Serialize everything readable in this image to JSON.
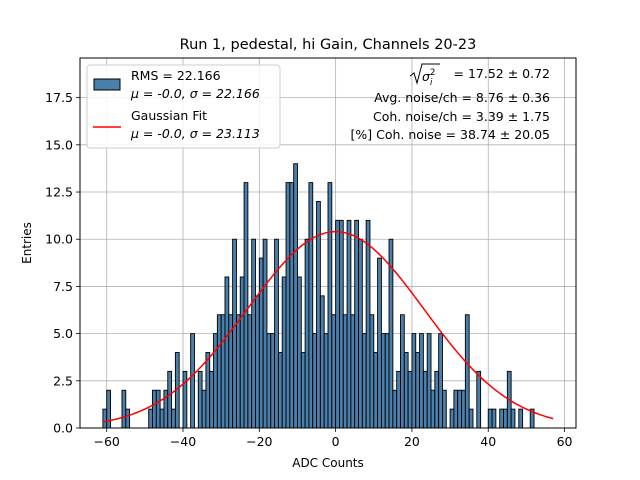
{
  "chart_data": {
    "type": "bar",
    "title": "Run 1, pedestal, hi Gain, Channels 20-23",
    "xlabel": "ADC Counts",
    "ylabel": "Entries",
    "xlim": [
      -67,
      63
    ],
    "ylim": [
      0,
      19.6
    ],
    "xticks": [
      -60,
      -40,
      -20,
      0,
      20,
      40,
      60
    ],
    "xtick_labels": [
      "−60",
      "−40",
      "−20",
      "0",
      "20",
      "40",
      "60"
    ],
    "yticks": [
      0.0,
      2.5,
      5.0,
      7.5,
      10.0,
      12.5,
      15.0,
      17.5
    ],
    "ytick_labels": [
      "0.0",
      "2.5",
      "5.0",
      "7.5",
      "10.0",
      "12.5",
      "15.0",
      "17.5"
    ],
    "grid": true,
    "bar_color": "#4a7eab",
    "fit_color": "#ff0000",
    "histogram": {
      "name": "RMS = 22.166",
      "stats": "μ = -0.0, σ = 22.166",
      "bin_start": -61,
      "bin_width": 1,
      "values": [
        1,
        2,
        0,
        0,
        0,
        2,
        1,
        0,
        0,
        0,
        0,
        0,
        1,
        2,
        2,
        1,
        2,
        3,
        1,
        4,
        0,
        3,
        0,
        5,
        0,
        3,
        2,
        4,
        3,
        5,
        6,
        6,
        8,
        6,
        10,
        6,
        8,
        13,
        6,
        10,
        7,
        9,
        10,
        5,
        5,
        10,
        4,
        8,
        13,
        13,
        14,
        8,
        4,
        10,
        13,
        5,
        12,
        7,
        5,
        13,
        6,
        11,
        11,
        6,
        11,
        6,
        11,
        10,
        5,
        11,
        6,
        4,
        9,
        5,
        5,
        10,
        2,
        3,
        6,
        4,
        3,
        5,
        4,
        5,
        3,
        5,
        2,
        3,
        5,
        2,
        0,
        1,
        2,
        2,
        2,
        6,
        1,
        0,
        3,
        0,
        0,
        1,
        1,
        0,
        1,
        1,
        3,
        1,
        0,
        1,
        0,
        0,
        1
      ],
      "legend_label_1": "RMS = 22.166",
      "legend_label_2": "μ = -0.0, σ = 22.166"
    },
    "gaussian_fit": {
      "name": "Gaussian Fit",
      "mu": 0.0,
      "sigma": 23.113,
      "amplitude": 10.4,
      "x_range": [
        -61,
        57
      ],
      "legend_label_1": "Gaussian Fit",
      "legend_label_2": "μ = -0.0, σ = 23.113"
    },
    "annotations": {
      "sigma_line_value": " = 17.52 ± 0.72",
      "avg_noise": "Avg. noise/ch = 8.76 ± 0.36",
      "coh_noise": "Coh. noise/ch = 3.39 ± 1.75",
      "coh_percent": "[%] Coh. noise = 38.74 ± 20.05"
    }
  }
}
